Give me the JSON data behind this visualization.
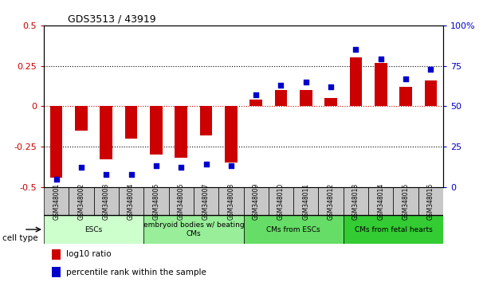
{
  "title": "GDS3513 / 43919",
  "samples": [
    "GSM348001",
    "GSM348002",
    "GSM348003",
    "GSM348004",
    "GSM348005",
    "GSM348006",
    "GSM348007",
    "GSM348008",
    "GSM348009",
    "GSM348010",
    "GSM348011",
    "GSM348012",
    "GSM348013",
    "GSM348014",
    "GSM348015",
    "GSM348016"
  ],
  "log10_ratio": [
    -0.44,
    -0.15,
    -0.33,
    -0.2,
    -0.3,
    -0.32,
    -0.18,
    -0.35,
    0.04,
    0.1,
    0.1,
    0.05,
    0.3,
    0.27,
    0.12,
    0.16
  ],
  "percentile_rank": [
    5,
    12,
    8,
    8,
    13,
    12,
    14,
    13,
    57,
    63,
    65,
    62,
    85,
    79,
    67,
    73
  ],
  "ylim_left": [
    -0.5,
    0.5
  ],
  "ylim_right": [
    0,
    100
  ],
  "yticks_left": [
    -0.5,
    -0.25,
    0,
    0.25,
    0.5
  ],
  "yticks_right": [
    0,
    25,
    50,
    75,
    100
  ],
  "bar_color": "#cc0000",
  "dot_color": "#0000cc",
  "cell_types": [
    {
      "label": "ESCs",
      "start": 0,
      "end": 4,
      "color": "#ccffcc"
    },
    {
      "label": "embryoid bodies w/ beating\nCMs",
      "start": 4,
      "end": 8,
      "color": "#99ee99"
    },
    {
      "label": "CMs from ESCs",
      "start": 8,
      "end": 12,
      "color": "#66dd66"
    },
    {
      "label": "CMs from fetal hearts",
      "start": 12,
      "end": 16,
      "color": "#33cc33"
    }
  ],
  "cell_type_colors": [
    "#ccffcc",
    "#99ee99",
    "#66dd66",
    "#33cc33"
  ],
  "legend_bar_label": "log10 ratio",
  "legend_dot_label": "percentile rank within the sample",
  "cell_type_label": "cell type",
  "background_color": "#ffffff",
  "plot_bg_color": "#ffffff",
  "tick_label_color_left": "#cc0000",
  "tick_label_color_right": "#0000cc",
  "grid_color_dotted": "#888888",
  "zero_line_color": "#cc0000",
  "sample_box_color": "#c8c8c8",
  "bar_width": 0.5
}
